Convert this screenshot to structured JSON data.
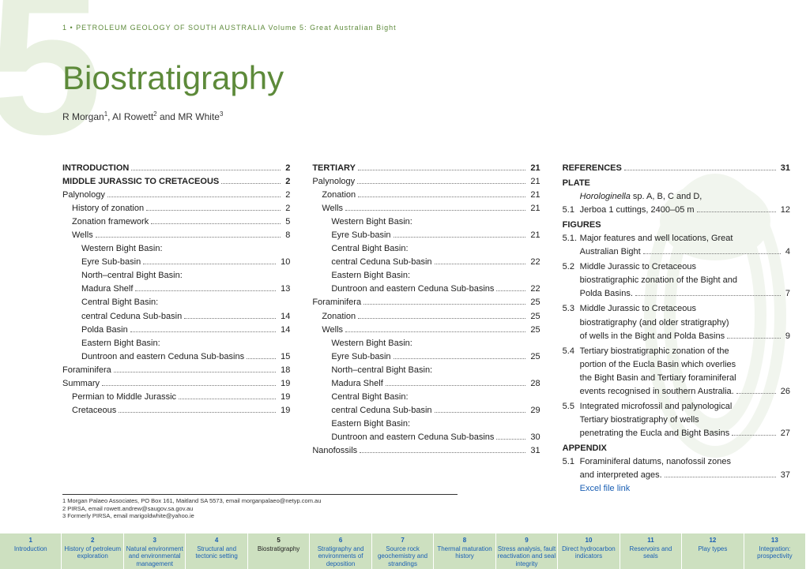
{
  "header": "1 • PETROLEUM GEOLOGY OF SOUTH AUSTRALIA  Volume 5:  Great Australian Bight",
  "chapter_number": "5",
  "title": "Biostratigraphy",
  "authors_html": "R Morgan¹, AI Rowett² and MR White³",
  "col1": [
    {
      "t": "INTRODUCTION",
      "p": "2",
      "b": 1,
      "i": 0
    },
    {
      "t": "MIDDLE JURASSIC TO CRETACEOUS",
      "p": "2",
      "b": 1,
      "i": 0
    },
    {
      "t": "Palynology",
      "p": "2",
      "i": 0
    },
    {
      "t": "History of zonation",
      "p": "2",
      "i": 1
    },
    {
      "t": "Zonation framework",
      "p": "5",
      "i": 1
    },
    {
      "t": "Wells",
      "p": "8",
      "i": 1
    },
    {
      "t": "Western Bight Basin: Eyre Sub-basin",
      "p": "10",
      "i": 2,
      "ml": 1
    },
    {
      "t": "North–central Bight Basin: Madura Shelf",
      "p": "13",
      "i": 2,
      "ml": 1
    },
    {
      "t": "Central Bight Basin: central Ceduna Sub-basin",
      "p": "14",
      "i": 2,
      "ml": 1
    },
    {
      "t": "Polda Basin",
      "p": "14",
      "i": 2
    },
    {
      "t": "Eastern Bight Basin: Duntroon and eastern Ceduna Sub-basins",
      "p": "15",
      "i": 2,
      "ml": 1
    },
    {
      "t": "Foraminifera",
      "p": "18",
      "i": 0
    },
    {
      "t": "Summary",
      "p": "19",
      "i": 0
    },
    {
      "t": "Permian to Middle Jurassic",
      "p": "19",
      "i": 1
    },
    {
      "t": "Cretaceous",
      "p": "19",
      "i": 1
    }
  ],
  "col2": [
    {
      "t": "TERTIARY",
      "p": "21",
      "b": 1,
      "i": 0
    },
    {
      "t": "Palynology",
      "p": "21",
      "i": 0
    },
    {
      "t": "Zonation",
      "p": "21",
      "i": 1
    },
    {
      "t": "Wells",
      "p": "21",
      "i": 1
    },
    {
      "t": "Western Bight Basin: Eyre Sub-basin",
      "p": "21",
      "i": 2,
      "ml": 1
    },
    {
      "t": "Central Bight Basin: central Ceduna Sub-basin",
      "p": "22",
      "i": 2,
      "ml": 1
    },
    {
      "t": "Eastern Bight Basin: Duntroon and eastern Ceduna Sub-basins",
      "p": "22",
      "i": 2,
      "ml": 1
    },
    {
      "t": "Foraminifera",
      "p": "25",
      "i": 0
    },
    {
      "t": "Zonation",
      "p": "25",
      "i": 1
    },
    {
      "t": "Wells",
      "p": "25",
      "i": 1
    },
    {
      "t": "Western Bight Basin: Eyre Sub-basin",
      "p": "25",
      "i": 2,
      "ml": 1
    },
    {
      "t": "North–central Bight Basin: Madura Shelf",
      "p": "28",
      "i": 2,
      "ml": 1
    },
    {
      "t": "Central Bight Basin: central Ceduna Sub-basin",
      "p": "29",
      "i": 2,
      "ml": 1
    },
    {
      "t": "Eastern Bight Basin: Duntroon and eastern Ceduna Sub-basins",
      "p": "30",
      "i": 2,
      "ml": 1
    },
    {
      "t": "Nanofossils",
      "p": "31",
      "i": 0
    }
  ],
  "col3_refs": {
    "t": "REFERENCES",
    "p": "31"
  },
  "col3_plate_head": "PLATE",
  "col3_plate": {
    "n": "5.1",
    "t": "Horologinella sp. A, B, C and D, Jerboa 1 cuttings, 2400–05 m",
    "p": "12",
    "italic_first": true
  },
  "col3_fig_head": "FIGURES",
  "col3_figs": [
    {
      "n": "5.1.",
      "t": "Major features and well locations, Great Australian Bight",
      "p": "4"
    },
    {
      "n": "5.2",
      "t": "Middle Jurassic to Cretaceous biostratigraphic zonation of the Bight and Polda Basins.",
      "p": "7"
    },
    {
      "n": "5.3",
      "t": "Middle Jurassic to Cretaceous biostratigraphy (and older stratigraphy) of wells in the Bight and Polda Basins",
      "p": "9"
    },
    {
      "n": "5.4",
      "t": "Tertiary biostratigraphic zonation of the portion of the Eucla Basin which overlies the Bight Basin and Tertiary foraminiferal events recognised in southern Australia.",
      "p": "26"
    },
    {
      "n": "5.5",
      "t": "Integrated microfossil and palynological Tertiary biostratigraphy of wells penetrating the Eucla and Bight Basins",
      "p": "27"
    }
  ],
  "col3_app_head": "APPENDIX",
  "col3_app": {
    "n": "5.1",
    "t": "Foraminiferal datums, nanofossil zones and interpreted ages.",
    "p": "37"
  },
  "excel_link": "Excel file link",
  "footnotes": [
    "1   Morgan Palaeo Associates, PO Box 161, Maitland SA 5573, email morganpalaeo@netyp.com.au",
    "2   PIRSA, email rowett.andrew@saugov.sa.gov.au",
    "3   Formerly PIRSA, email marigoldwhite@yahoo.ie"
  ],
  "nav": [
    {
      "n": "1",
      "t": "Introduction"
    },
    {
      "n": "2",
      "t": "History of petroleum exploration"
    },
    {
      "n": "3",
      "t": "Natural environment and environmental management"
    },
    {
      "n": "4",
      "t": "Structural and tectonic setting"
    },
    {
      "n": "5",
      "t": "Biostratigraphy",
      "active": true
    },
    {
      "n": "6",
      "t": "Stratigraphy and environments of deposition"
    },
    {
      "n": "7",
      "t": "Source rock geochemistry and strandings"
    },
    {
      "n": "8",
      "t": "Thermal maturation history"
    },
    {
      "n": "9",
      "t": "Stress analysis, fault reactivation and seal integrity"
    },
    {
      "n": "10",
      "t": "Direct hydrocarbon indicators"
    },
    {
      "n": "11",
      "t": "Reservoirs and seals"
    },
    {
      "n": "12",
      "t": "Play types"
    },
    {
      "n": "13",
      "t": "Integration: prospectivity"
    }
  ]
}
